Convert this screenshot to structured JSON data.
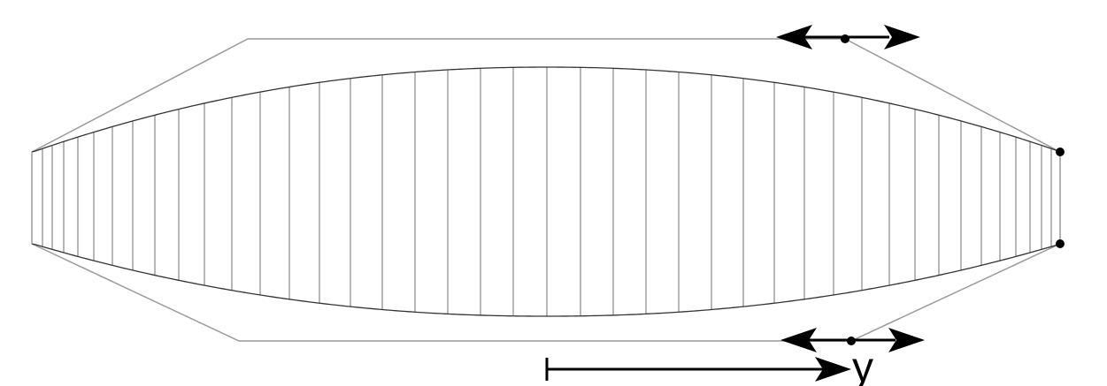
{
  "diagram": {
    "axis_label": "y",
    "colors": {
      "outline": "#9a9a9a",
      "ribs": "#7a7a7a",
      "wing_edge": "#333333",
      "arrows": "#000000",
      "control_points": "#000000",
      "background": "#ffffff"
    }
  }
}
